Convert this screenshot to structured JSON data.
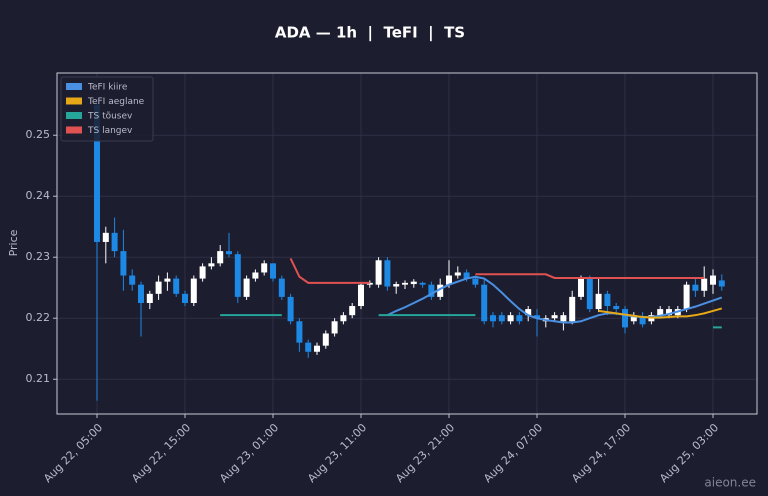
{
  "chart_data": {
    "type": "candlestick",
    "title": "ADA — 1h  |  TeFI  |  TS",
    "ylabel": "Price",
    "watermark": "aieon.ee",
    "up_color": "#ffffff",
    "down_color": "#1e88e5",
    "grid": true,
    "legend": "upper left",
    "ylim": [
      0.2043,
      0.2602
    ],
    "yticks": [
      0.21,
      0.22,
      0.23,
      0.24,
      0.25
    ],
    "x": [
      "Aug 22, 05:00",
      "Aug 22, 06:00",
      "Aug 22, 07:00",
      "Aug 22, 08:00",
      "Aug 22, 09:00",
      "Aug 22, 10:00",
      "Aug 22, 11:00",
      "Aug 22, 12:00",
      "Aug 22, 13:00",
      "Aug 22, 14:00",
      "Aug 22, 15:00",
      "Aug 22, 16:00",
      "Aug 22, 17:00",
      "Aug 22, 18:00",
      "Aug 22, 19:00",
      "Aug 22, 20:00",
      "Aug 22, 21:00",
      "Aug 22, 22:00",
      "Aug 22, 23:00",
      "Aug 23, 00:00",
      "Aug 23, 01:00",
      "Aug 23, 02:00",
      "Aug 23, 03:00",
      "Aug 23, 04:00",
      "Aug 23, 05:00",
      "Aug 23, 06:00",
      "Aug 23, 07:00",
      "Aug 23, 08:00",
      "Aug 23, 09:00",
      "Aug 23, 10:00",
      "Aug 23, 11:00",
      "Aug 23, 12:00",
      "Aug 23, 13:00",
      "Aug 23, 14:00",
      "Aug 23, 15:00",
      "Aug 23, 16:00",
      "Aug 23, 17:00",
      "Aug 23, 18:00",
      "Aug 23, 19:00",
      "Aug 23, 20:00",
      "Aug 23, 21:00",
      "Aug 23, 22:00",
      "Aug 23, 23:00",
      "Aug 24, 00:00",
      "Aug 24, 01:00",
      "Aug 24, 02:00",
      "Aug 24, 03:00",
      "Aug 24, 04:00",
      "Aug 24, 05:00",
      "Aug 24, 06:00",
      "Aug 24, 07:00",
      "Aug 24, 08:00",
      "Aug 24, 09:00",
      "Aug 24, 10:00",
      "Aug 24, 11:00",
      "Aug 24, 12:00",
      "Aug 24, 13:00",
      "Aug 24, 14:00",
      "Aug 24, 15:00",
      "Aug 24, 16:00",
      "Aug 24, 17:00",
      "Aug 24, 18:00",
      "Aug 24, 19:00",
      "Aug 24, 20:00",
      "Aug 24, 21:00",
      "Aug 24, 22:00",
      "Aug 24, 23:00",
      "Aug 25, 00:00",
      "Aug 25, 01:00",
      "Aug 25, 02:00",
      "Aug 25, 03:00",
      "Aug 25, 04:00"
    ],
    "xticks": [
      "Aug 22, 05:00",
      "Aug 22, 15:00",
      "Aug 23, 01:00",
      "Aug 23, 11:00",
      "Aug 23, 21:00",
      "Aug 24, 07:00",
      "Aug 24, 17:00",
      "Aug 25, 03:00"
    ],
    "open": [
      0.255,
      0.2325,
      0.234,
      0.231,
      0.227,
      0.2255,
      0.2225,
      0.224,
      0.226,
      0.2265,
      0.224,
      0.2225,
      0.2265,
      0.2285,
      0.229,
      0.231,
      0.2305,
      0.2235,
      0.2265,
      0.2275,
      0.229,
      0.2265,
      0.2235,
      0.2195,
      0.216,
      0.2145,
      0.2155,
      0.2175,
      0.2195,
      0.2205,
      0.222,
      0.2255,
      0.2255,
      0.2295,
      0.2252,
      0.2255,
      0.2256,
      0.2258,
      0.2255,
      0.2235,
      0.2255,
      0.227,
      0.2275,
      0.2265,
      0.2255,
      0.2205,
      0.2205,
      0.2195,
      0.2205,
      0.2205,
      0.2205,
      0.2195,
      0.22,
      0.2195,
      0.2195,
      0.2235,
      0.2265,
      0.2215,
      0.224,
      0.222,
      0.2215,
      0.2195,
      0.2203,
      0.2195,
      0.2205,
      0.2205,
      0.2205,
      0.2215,
      0.2255,
      0.2245,
      0.2255,
      0.2262
    ],
    "high": [
      0.256,
      0.235,
      0.2365,
      0.2345,
      0.228,
      0.226,
      0.2245,
      0.227,
      0.2275,
      0.227,
      0.2245,
      0.227,
      0.229,
      0.23,
      0.232,
      0.234,
      0.231,
      0.227,
      0.228,
      0.2295,
      0.229,
      0.227,
      0.224,
      0.22,
      0.2165,
      0.216,
      0.218,
      0.22,
      0.221,
      0.2225,
      0.2258,
      0.2262,
      0.23,
      0.23,
      0.226,
      0.2262,
      0.2264,
      0.226,
      0.226,
      0.2265,
      0.2295,
      0.2285,
      0.228,
      0.227,
      0.2265,
      0.221,
      0.221,
      0.221,
      0.221,
      0.222,
      0.2215,
      0.2205,
      0.221,
      0.221,
      0.2245,
      0.227,
      0.227,
      0.2265,
      0.2245,
      0.2225,
      0.222,
      0.221,
      0.221,
      0.221,
      0.222,
      0.222,
      0.222,
      0.226,
      0.2265,
      0.2285,
      0.228,
      0.2272
    ],
    "low": [
      0.2065,
      0.229,
      0.23,
      0.2245,
      0.2245,
      0.217,
      0.2215,
      0.223,
      0.2245,
      0.2235,
      0.222,
      0.222,
      0.226,
      0.228,
      0.2285,
      0.23,
      0.2225,
      0.223,
      0.226,
      0.227,
      0.226,
      0.223,
      0.219,
      0.2145,
      0.2135,
      0.214,
      0.215,
      0.217,
      0.219,
      0.22,
      0.2215,
      0.225,
      0.225,
      0.2245,
      0.224,
      0.2248,
      0.225,
      0.225,
      0.223,
      0.223,
      0.225,
      0.2265,
      0.226,
      0.225,
      0.219,
      0.2185,
      0.219,
      0.219,
      0.219,
      0.2195,
      0.217,
      0.2185,
      0.2195,
      0.218,
      0.219,
      0.223,
      0.221,
      0.221,
      0.2205,
      0.2205,
      0.2175,
      0.219,
      0.2185,
      0.219,
      0.22,
      0.22,
      0.22,
      0.221,
      0.2235,
      0.2235,
      0.224,
      0.2245
    ],
    "close": [
      0.2325,
      0.234,
      0.231,
      0.227,
      0.2255,
      0.2225,
      0.224,
      0.226,
      0.2265,
      0.224,
      0.2225,
      0.2265,
      0.2285,
      0.229,
      0.231,
      0.2305,
      0.2235,
      0.2265,
      0.2275,
      0.229,
      0.2265,
      0.2235,
      0.2195,
      0.216,
      0.2145,
      0.2155,
      0.2175,
      0.2195,
      0.2205,
      0.222,
      0.2255,
      0.2258,
      0.2295,
      0.2252,
      0.2256,
      0.2258,
      0.226,
      0.2255,
      0.2235,
      0.2255,
      0.227,
      0.2275,
      0.2265,
      0.2255,
      0.2195,
      0.2195,
      0.2195,
      0.2205,
      0.2195,
      0.2215,
      0.22,
      0.22,
      0.2205,
      0.2205,
      0.2235,
      0.2265,
      0.2215,
      0.224,
      0.222,
      0.2215,
      0.2185,
      0.2205,
      0.219,
      0.2205,
      0.2215,
      0.2215,
      0.2215,
      0.2255,
      0.2245,
      0.2265,
      0.227,
      0.2252
    ],
    "series": [
      {
        "name": "TeFI kiire",
        "color": "#4a90e2",
        "values": [
          null,
          null,
          null,
          null,
          null,
          null,
          null,
          null,
          null,
          null,
          null,
          null,
          null,
          null,
          null,
          null,
          null,
          null,
          null,
          null,
          null,
          null,
          null,
          null,
          null,
          null,
          null,
          null,
          null,
          null,
          null,
          null,
          null,
          0.2205,
          0.2212,
          0.2218,
          0.2225,
          0.2232,
          0.224,
          0.2248,
          0.2255,
          0.226,
          0.2265,
          0.2268,
          0.2265,
          0.2255,
          0.2242,
          0.2228,
          0.2215,
          0.2205,
          0.22,
          0.2197,
          0.2195,
          0.2193,
          0.2193,
          0.2195,
          0.22,
          0.2205,
          0.2208,
          0.2208,
          0.2205,
          0.2203,
          0.2202,
          0.2202,
          0.2204,
          0.2207,
          0.2211,
          0.2215,
          0.2219,
          0.2224,
          0.2229,
          0.2234
        ]
      },
      {
        "name": "TeFI aeglane",
        "color": "#e6a817",
        "values": [
          null,
          null,
          null,
          null,
          null,
          null,
          null,
          null,
          null,
          null,
          null,
          null,
          null,
          null,
          null,
          null,
          null,
          null,
          null,
          null,
          null,
          null,
          null,
          null,
          null,
          null,
          null,
          null,
          null,
          null,
          null,
          null,
          null,
          null,
          null,
          null,
          null,
          null,
          null,
          null,
          null,
          null,
          null,
          null,
          null,
          null,
          null,
          null,
          null,
          null,
          null,
          null,
          null,
          null,
          null,
          null,
          null,
          0.2212,
          0.221,
          0.2208,
          0.2206,
          0.2204,
          0.2202,
          0.2201,
          0.2201,
          0.2202,
          0.2203,
          0.2203,
          0.2205,
          0.2208,
          0.2212,
          0.2216
        ]
      },
      {
        "name": "TS tõusev",
        "color": "#26a69a",
        "values": [
          null,
          null,
          null,
          null,
          null,
          null,
          null,
          null,
          null,
          null,
          null,
          null,
          null,
          null,
          0.2205,
          0.2205,
          0.2205,
          0.2205,
          0.2205,
          0.2205,
          0.2205,
          0.2205,
          null,
          null,
          null,
          null,
          null,
          null,
          null,
          null,
          null,
          null,
          0.2205,
          0.2205,
          0.2205,
          0.2205,
          0.2205,
          0.2205,
          0.2205,
          0.2205,
          0.2205,
          0.2205,
          0.2205,
          0.2205,
          null,
          null,
          null,
          null,
          null,
          null,
          null,
          null,
          null,
          null,
          null,
          null,
          null,
          null,
          null,
          null,
          null,
          null,
          null,
          null,
          null,
          null,
          null,
          null,
          null,
          null,
          0.2185,
          0.2185
        ]
      },
      {
        "name": "TS langev",
        "color": "#e05252",
        "values": [
          null,
          null,
          null,
          null,
          null,
          null,
          null,
          null,
          null,
          null,
          null,
          null,
          null,
          null,
          null,
          null,
          null,
          null,
          null,
          null,
          null,
          null,
          0.2298,
          0.2268,
          0.2258,
          0.2258,
          0.2258,
          0.2258,
          0.2258,
          0.2258,
          0.2258,
          0.2258,
          null,
          null,
          null,
          null,
          null,
          null,
          null,
          null,
          null,
          null,
          null,
          0.2272,
          0.2272,
          0.2272,
          0.2272,
          0.2272,
          0.2272,
          0.2272,
          0.2272,
          0.2272,
          0.2266,
          0.2266,
          0.2266,
          0.2266,
          0.2266,
          0.2266,
          0.2266,
          0.2266,
          0.2266,
          0.2266,
          0.2266,
          0.2266,
          0.2266,
          0.2266,
          0.2266,
          0.2266,
          0.2266,
          0.2266,
          null,
          null
        ]
      }
    ]
  }
}
